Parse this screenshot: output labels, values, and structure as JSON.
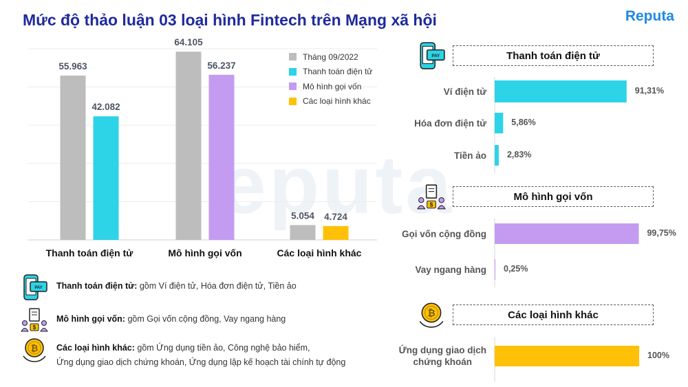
{
  "header": {
    "title": "Mức độ thảo luận 03 loại hình Fintech trên Mạng xã hội",
    "logo": "Reputa"
  },
  "colors": {
    "gray": "#bdbdbd",
    "cyan": "#2dd3e6",
    "purple": "#c39cf2",
    "yellow": "#ffc107",
    "title": "#1f2a9c",
    "logo": "#1e88e5"
  },
  "chart_data": [
    {
      "type": "bar",
      "categories": [
        "Thanh toán điện tử",
        "Mô hình gọi vốn",
        "Các loại hình khác"
      ],
      "series": [
        {
          "name": "Tháng 09/2022",
          "values": [
            55963,
            64105,
            5054
          ],
          "labels": [
            "55.963",
            "64.105",
            "5.054"
          ],
          "color": "#bdbdbd"
        },
        {
          "name": "",
          "values": [
            42082,
            56237,
            4724
          ],
          "labels": [
            "42.082",
            "56.237",
            "4.724"
          ],
          "colors": [
            "#2dd3e6",
            "#c39cf2",
            "#ffc107"
          ]
        }
      ],
      "legend": [
        "Tháng 09/2022",
        "Thanh toán điện tử",
        "Mô hình gọi vốn",
        "Các loại hình khác"
      ],
      "legend_placement": "top-right",
      "ylim": [
        0,
        70000
      ],
      "grid": true
    },
    {
      "type": "bar",
      "orientation": "horizontal",
      "title": "Thanh toán điện tử",
      "categories": [
        "Ví điện tử",
        "Hóa đơn điện tử",
        "Tiền ảo"
      ],
      "values": [
        91.31,
        5.86,
        2.83
      ],
      "labels": [
        "91,31%",
        "5,86%",
        "2,83%"
      ],
      "color": "#2dd3e6"
    },
    {
      "type": "bar",
      "orientation": "horizontal",
      "title": "Mô hình gọi vốn",
      "categories": [
        "Gọi vốn cộng đồng",
        "Vay ngang hàng"
      ],
      "values": [
        99.75,
        0.25
      ],
      "labels": [
        "99,75%",
        "0,25%"
      ],
      "color": "#c39cf2"
    },
    {
      "type": "bar",
      "orientation": "horizontal",
      "title": "Các loại hình khác",
      "categories": [
        "Ứng dụng giao dịch chứng khoán"
      ],
      "categories_display": [
        [
          "Ứng dụng giao dịch",
          "chứng khoán"
        ]
      ],
      "values": [
        100
      ],
      "labels": [
        "100%"
      ],
      "color": "#ffc107"
    }
  ],
  "definitions": [
    {
      "term": "Thanh toán điện tử:",
      "desc": " gồm Ví điện tử, Hóa đơn điện tử, Tiền ảo",
      "desc2": "",
      "icon": "payment-phone-icon"
    },
    {
      "term": "Mô hình gọi vốn:",
      "desc": " gồm Gọi vốn cộng đồng, Vay ngang hàng",
      "desc2": "",
      "icon": "crowdfunding-people-icon"
    },
    {
      "term": "Các loại hình khác:",
      "desc": " gồm Ứng dụng tiền ảo, Công nghệ bảo hiểm,",
      "desc2": "Ứng dụng giao dịch chứng khoán, Ứng dụng lập kế hoạch tài chính tự động",
      "icon": "bitcoin-coin-icon"
    }
  ]
}
